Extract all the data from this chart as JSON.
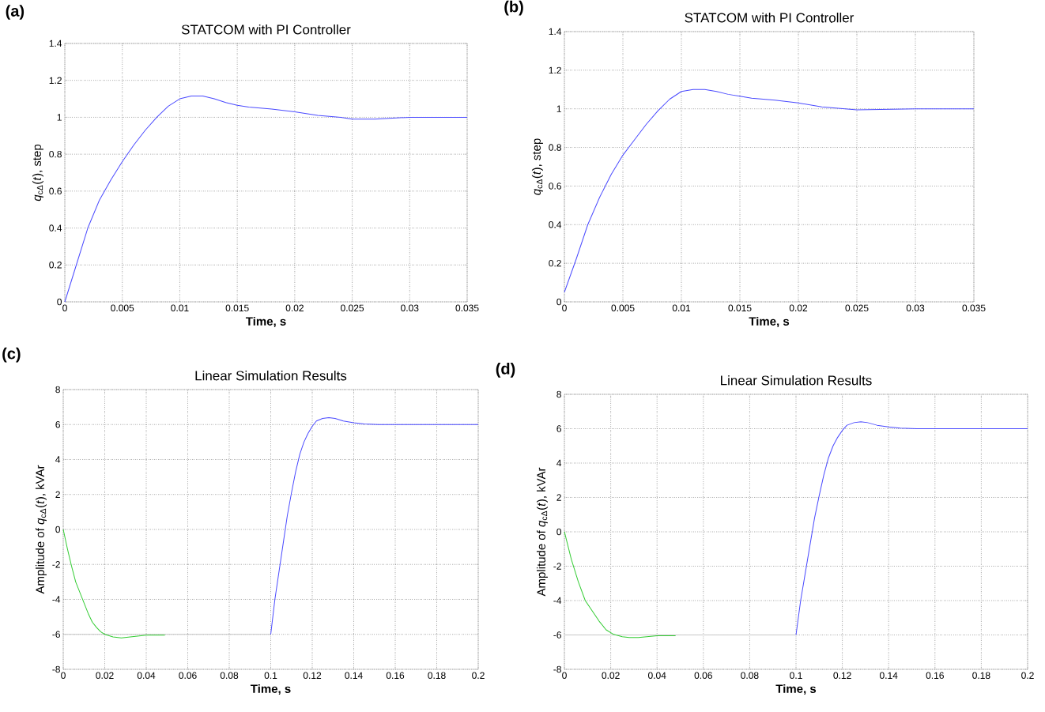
{
  "chart_data": [
    {
      "type": "line",
      "title": "STATCOM with PI Controller",
      "xlabel": "Time, s",
      "ylabel": "*q*$_{cΔ}$(*t*), step",
      "annotations": [
        "(a)"
      ],
      "grid": true,
      "line_style": "solid",
      "xlim": [
        0,
        0.035
      ],
      "ylim": [
        0,
        1.4
      ],
      "xticks": [
        0,
        0.005,
        0.01,
        0.015,
        0.02,
        0.025,
        0.03,
        0.035
      ],
      "yticks": [
        0,
        0.2,
        0.4,
        0.6,
        0.8,
        1,
        1.2,
        1.4
      ],
      "series": [
        {
          "color": "#4a4aff",
          "x": [
            0,
            0.001,
            0.002,
            0.003,
            0.004,
            0.005,
            0.006,
            0.007,
            0.008,
            0.009,
            0.01,
            0.011,
            0.012,
            0.013,
            0.014,
            0.015,
            0.016,
            0.018,
            0.02,
            0.022,
            0.024,
            0.025,
            0.027,
            0.03,
            0.035
          ],
          "values": [
            0,
            0.2,
            0.4,
            0.55,
            0.66,
            0.76,
            0.85,
            0.93,
            1.0,
            1.06,
            1.1,
            1.115,
            1.115,
            1.1,
            1.08,
            1.065,
            1.055,
            1.045,
            1.03,
            1.01,
            1.0,
            0.99,
            0.99,
            1.0,
            1.0
          ]
        }
      ]
    },
    {
      "type": "line",
      "title": "STATCOM with PI Controller",
      "xlabel": "Time, s",
      "ylabel": "*q*$_{cΔ}$(*t*), step",
      "annotations": [
        "(b)"
      ],
      "grid": true,
      "line_style": "solid",
      "xlim": [
        0,
        0.035
      ],
      "ylim": [
        0,
        1.4
      ],
      "xticks": [
        0,
        0.005,
        0.01,
        0.015,
        0.02,
        0.025,
        0.03,
        0.035
      ],
      "yticks": [
        0,
        0.2,
        0.4,
        0.6,
        0.8,
        1,
        1.2,
        1.4
      ],
      "series": [
        {
          "color": "#4a4aff",
          "x": [
            0,
            0.001,
            0.002,
            0.003,
            0.004,
            0.005,
            0.006,
            0.007,
            0.008,
            0.009,
            0.01,
            0.011,
            0.012,
            0.013,
            0.014,
            0.015,
            0.016,
            0.018,
            0.02,
            0.022,
            0.024,
            0.025,
            0.03,
            0.035
          ],
          "values": [
            0.05,
            0.22,
            0.4,
            0.54,
            0.66,
            0.76,
            0.84,
            0.92,
            0.99,
            1.05,
            1.09,
            1.1,
            1.1,
            1.09,
            1.075,
            1.065,
            1.055,
            1.045,
            1.03,
            1.01,
            1.0,
            0.995,
            1.0,
            1.0
          ]
        }
      ]
    },
    {
      "type": "line",
      "title": "Linear Simulation Results",
      "xlabel": "Time, s",
      "ylabel": "Amplitude of *q*$_{cΔ}$(*t*), kVAr",
      "annotations": [
        "(c)"
      ],
      "grid": true,
      "line_style": "solid",
      "xlim": [
        0,
        0.2
      ],
      "ylim": [
        -8,
        8
      ],
      "xticks": [
        0,
        0.02,
        0.04,
        0.06,
        0.08,
        0.1,
        0.12,
        0.14,
        0.16,
        0.18,
        0.2
      ],
      "yticks": [
        -8,
        -6,
        -4,
        -2,
        0,
        2,
        4,
        6,
        8
      ],
      "series": [
        {
          "color": "#c8c8c8",
          "x": [
            0,
            0.1
          ],
          "values": [
            -6,
            -6
          ]
        },
        {
          "color": "#33cc33",
          "x": [
            0,
            0.002,
            0.004,
            0.006,
            0.008,
            0.01,
            0.012,
            0.014,
            0.016,
            0.018,
            0.02,
            0.024,
            0.028,
            0.032,
            0.036,
            0.04,
            0.045,
            0.049
          ],
          "values": [
            0,
            -1.1,
            -2.1,
            -3.0,
            -3.6,
            -4.2,
            -4.8,
            -5.3,
            -5.6,
            -5.85,
            -6.0,
            -6.15,
            -6.2,
            -6.15,
            -6.1,
            -6.05,
            -6.05,
            -6.05
          ]
        },
        {
          "color": "#4a4aff",
          "x": [
            0.1,
            0.102,
            0.104,
            0.106,
            0.108,
            0.11,
            0.112,
            0.114,
            0.116,
            0.118,
            0.12,
            0.122,
            0.125,
            0.128,
            0.131,
            0.135,
            0.14,
            0.145,
            0.152,
            0.2
          ],
          "values": [
            -6,
            -4,
            -2.4,
            -0.8,
            0.8,
            2.1,
            3.3,
            4.3,
            5.0,
            5.5,
            5.9,
            6.2,
            6.35,
            6.4,
            6.35,
            6.2,
            6.1,
            6.03,
            6.0,
            6.0
          ]
        }
      ]
    },
    {
      "type": "line",
      "title": "Linear Simulation Results",
      "xlabel": "Time, s",
      "ylabel": "Amplitude of *q*$_{cΔ}$(*t*), kVAr",
      "annotations": [
        "(d)"
      ],
      "grid": true,
      "line_style": "solid",
      "xlim": [
        0,
        0.2
      ],
      "ylim": [
        -8,
        8
      ],
      "xticks": [
        0,
        0.02,
        0.04,
        0.06,
        0.08,
        0.1,
        0.12,
        0.14,
        0.16,
        0.18,
        0.2
      ],
      "yticks": [
        -8,
        -6,
        -4,
        -2,
        0,
        2,
        4,
        6,
        8
      ],
      "series": [
        {
          "color": "#c8c8c8",
          "x": [
            0,
            0.1
          ],
          "values": [
            -6,
            -6
          ]
        },
        {
          "color": "#33cc33",
          "x": [
            0,
            0.003,
            0.006,
            0.009,
            0.012,
            0.015,
            0.018,
            0.021,
            0.025,
            0.028,
            0.032,
            0.036,
            0.04,
            0.048
          ],
          "values": [
            0,
            -1.6,
            -2.9,
            -4.0,
            -4.6,
            -5.2,
            -5.7,
            -5.95,
            -6.1,
            -6.15,
            -6.15,
            -6.1,
            -6.05,
            -6.05
          ]
        },
        {
          "color": "#4a4aff",
          "x": [
            0.1,
            0.102,
            0.104,
            0.106,
            0.108,
            0.11,
            0.112,
            0.114,
            0.116,
            0.118,
            0.12,
            0.122,
            0.125,
            0.128,
            0.131,
            0.135,
            0.14,
            0.145,
            0.152,
            0.2
          ],
          "values": [
            -6,
            -4,
            -2.4,
            -0.8,
            0.8,
            2.1,
            3.3,
            4.3,
            5.0,
            5.5,
            5.9,
            6.2,
            6.35,
            6.4,
            6.35,
            6.2,
            6.1,
            6.03,
            6.0,
            6.0
          ]
        }
      ]
    }
  ]
}
